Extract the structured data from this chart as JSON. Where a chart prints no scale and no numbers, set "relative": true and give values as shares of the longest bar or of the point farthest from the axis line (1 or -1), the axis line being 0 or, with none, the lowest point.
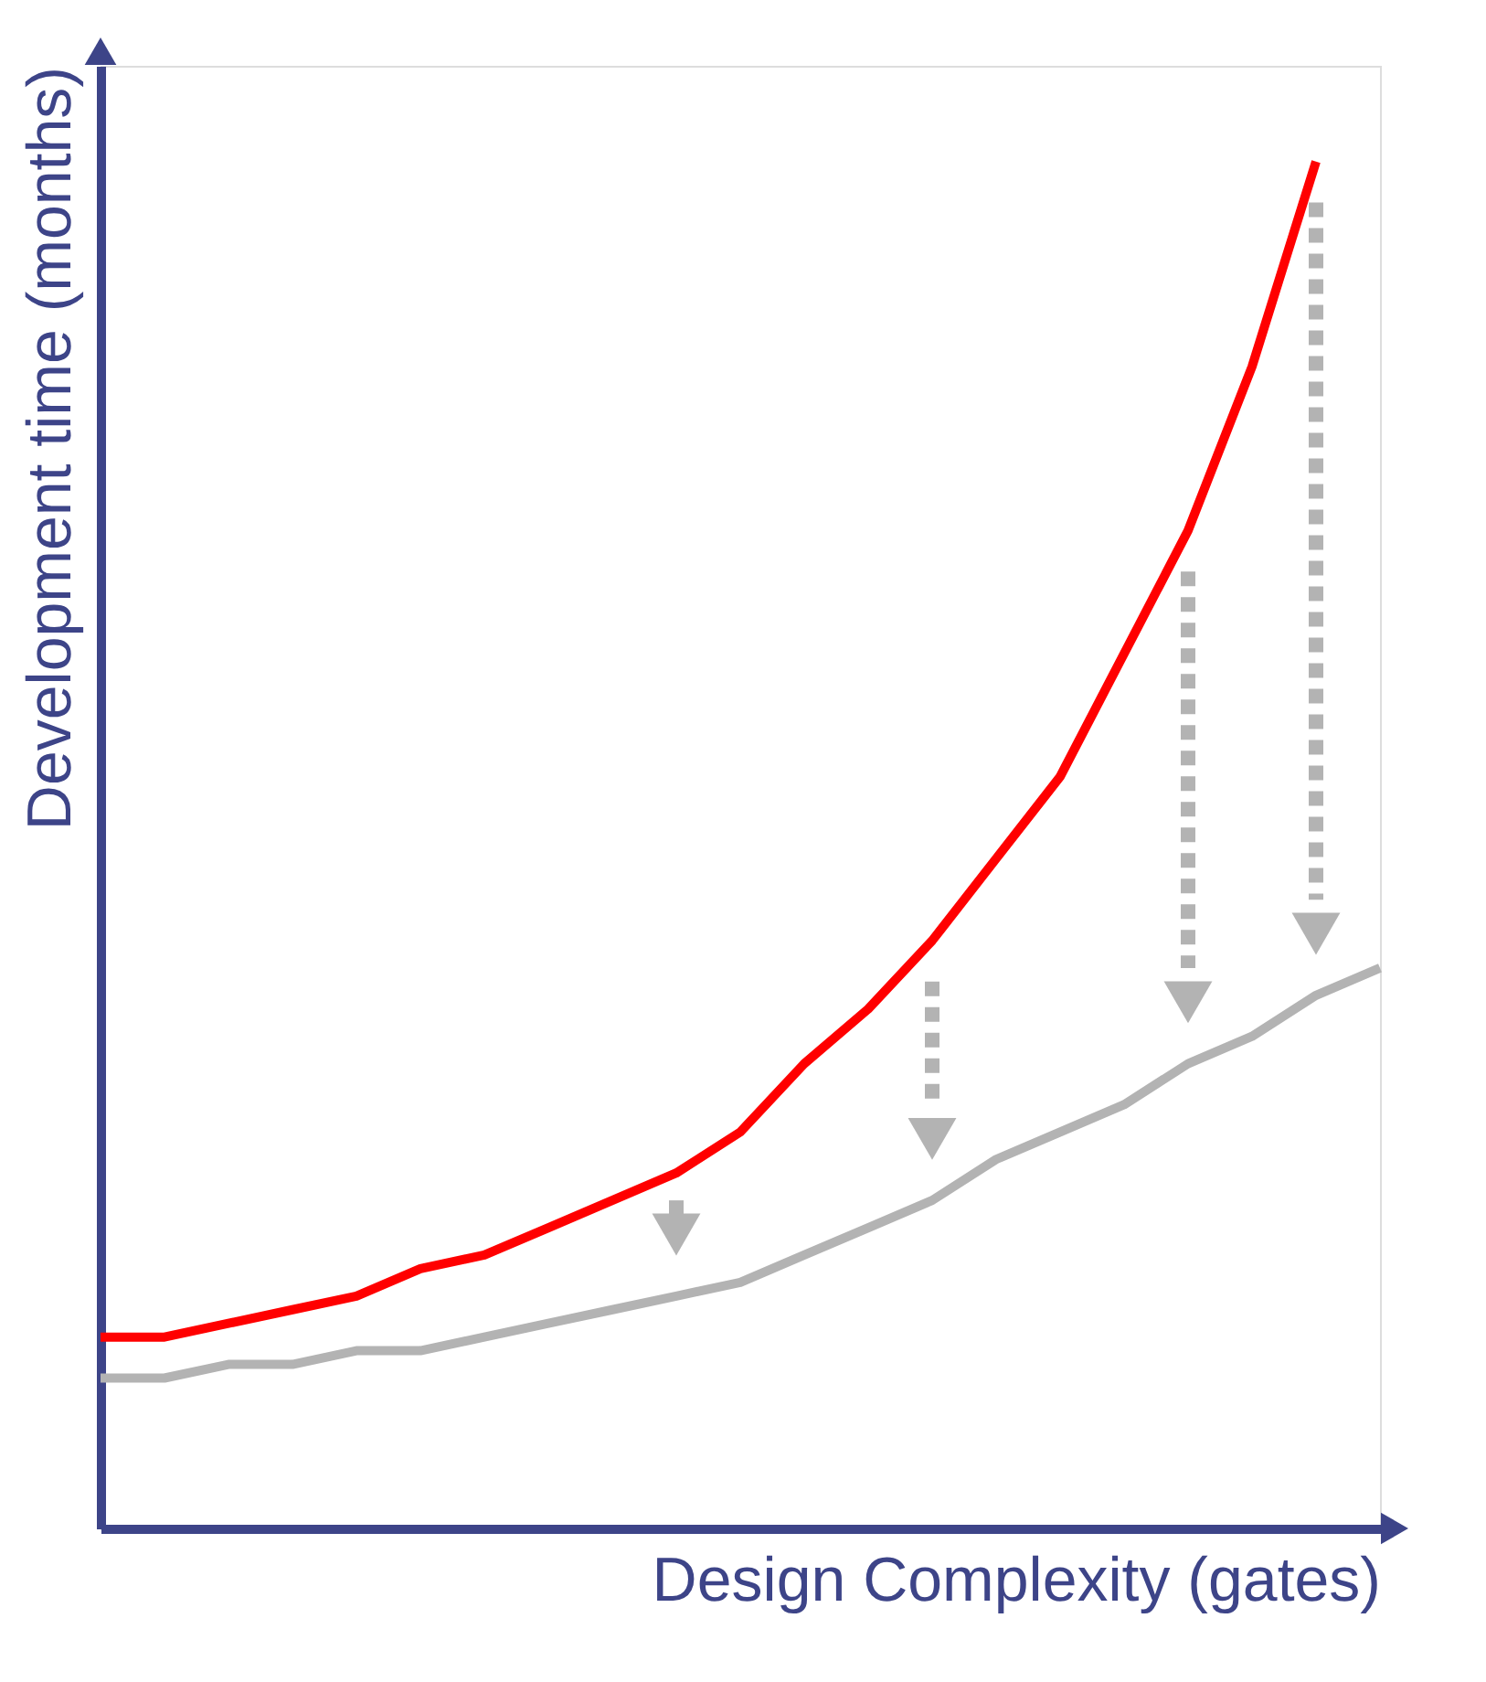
{
  "chart_data": {
    "type": "line",
    "relative": true,
    "xlabel": "Design Complexity (gates)",
    "ylabel": "Development time (months)",
    "categories": [
      null,
      null,
      null,
      null,
      null,
      null,
      null,
      null,
      null,
      null,
      null,
      null,
      null,
      null,
      null,
      null,
      null,
      null,
      null,
      null,
      null
    ],
    "series": [
      {
        "color": "#ff0000",
        "values": [
          0.14,
          0.14,
          0.15,
          0.16,
          0.17,
          0.19,
          0.2,
          0.22,
          0.24,
          0.26,
          0.29,
          0.34,
          0.38,
          0.43,
          0.49,
          0.55,
          0.64,
          0.73,
          0.85,
          1.0,
          null
        ]
      },
      {
        "color": "#b3b3b3",
        "values": [
          0.11,
          0.11,
          0.12,
          0.12,
          0.13,
          0.13,
          0.14,
          0.15,
          0.16,
          0.17,
          0.18,
          0.2,
          0.22,
          0.24,
          0.27,
          0.29,
          0.31,
          0.34,
          0.36,
          0.39,
          0.41
        ]
      }
    ],
    "grid": false,
    "legend": false,
    "marker": "none",
    "line_style": "solid"
  }
}
